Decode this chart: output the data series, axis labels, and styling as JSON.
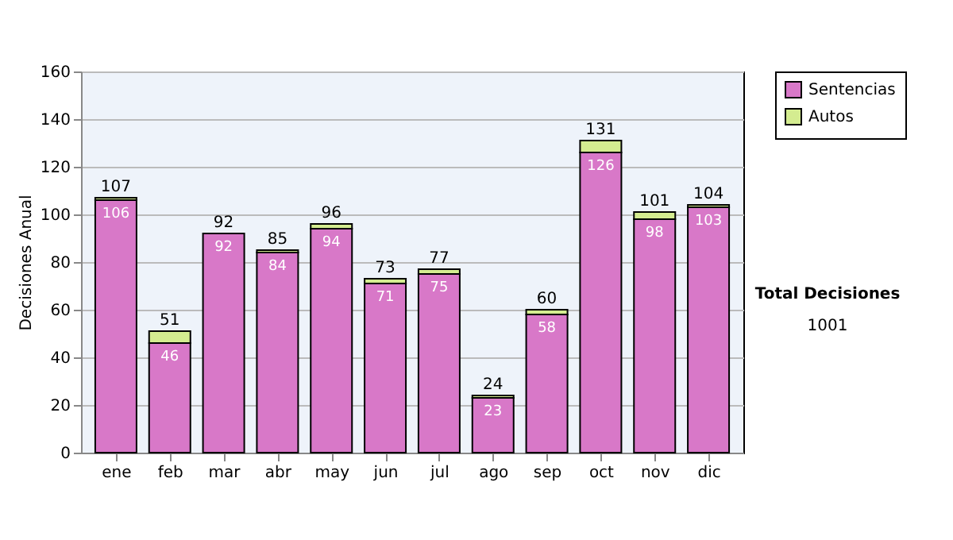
{
  "chart_data": {
    "type": "bar",
    "stacked": true,
    "ylabel": "Decisiones Anual",
    "categories": [
      "ene",
      "feb",
      "mar",
      "abr",
      "may",
      "jun",
      "jul",
      "ago",
      "sep",
      "oct",
      "nov",
      "dic"
    ],
    "series": [
      {
        "name": "Sentencias",
        "color": "#d878c8",
        "values": [
          106,
          46,
          92,
          84,
          94,
          71,
          75,
          23,
          58,
          126,
          98,
          103
        ],
        "value_labels": [
          "106",
          "46",
          "92",
          "84",
          "94",
          "71",
          "75",
          "23",
          "58",
          "126",
          "98",
          "103"
        ]
      },
      {
        "name": "Autos",
        "color": "#d4ec90",
        "values": [
          1,
          5,
          0,
          1,
          2,
          2,
          2,
          1,
          2,
          5,
          3,
          1
        ]
      }
    ],
    "totals": [
      "107",
      "51",
      "92",
      "85",
      "96",
      "73",
      "77",
      "24",
      "60",
      "131",
      "101",
      "104"
    ],
    "ylim": [
      0,
      160
    ],
    "yticks": [
      0,
      20,
      40,
      60,
      80,
      100,
      120,
      140,
      160
    ],
    "grid": "y",
    "legend": "right",
    "annotations": [
      "Total Decisiones",
      "1001"
    ]
  }
}
